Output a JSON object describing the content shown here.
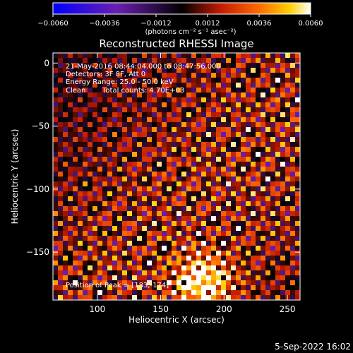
{
  "chart_data": {
    "type": "heatmap",
    "title": "Reconstructed RHESSI Image",
    "xlabel": "Heliocentric X (arcsec)",
    "ylabel": "Heliocentric Y (arcsec)",
    "xlim": [
      65,
      260
    ],
    "ylim": [
      -188,
      8
    ],
    "x_ticks": [
      {
        "value": 100,
        "label": "100"
      },
      {
        "value": 150,
        "label": "150"
      },
      {
        "value": 200,
        "label": "200"
      },
      {
        "value": 250,
        "label": "250"
      }
    ],
    "y_ticks": [
      {
        "value": 0,
        "label": "0"
      },
      {
        "value": -50,
        "label": "−50"
      },
      {
        "value": -100,
        "label": "−100"
      },
      {
        "value": -150,
        "label": "−150"
      }
    ],
    "colorbar": {
      "range": [
        -0.006,
        0.006
      ],
      "ticks": [
        {
          "value": -0.006,
          "label": "−0.0060"
        },
        {
          "value": -0.0036,
          "label": "−0.0036"
        },
        {
          "value": -0.0012,
          "label": "−0.0012"
        },
        {
          "value": 0.0012,
          "label": "0.0012"
        },
        {
          "value": 0.0036,
          "label": "0.0036"
        },
        {
          "value": 0.006,
          "label": "0.0060"
        }
      ],
      "units_label": "(photons cm⁻² s⁻¹ asec⁻²)"
    },
    "annotations": [
      "21-May-2016 08:44:04.000 to 08:47:56.000",
      "Detectors: 3F 8F, Att 0",
      "Energy Range: 25.0 - 50.0 keV",
      "Clean",
      "Total counts: 4.70E+03"
    ],
    "peak": {
      "label": "Position of Peak = [183,-174]",
      "x": 183,
      "y": -174
    },
    "grid": false
  },
  "footer_timestamp": "5-Sep-2022 16:02",
  "colors": {
    "background": "#000000",
    "foreground": "#ffffff"
  }
}
